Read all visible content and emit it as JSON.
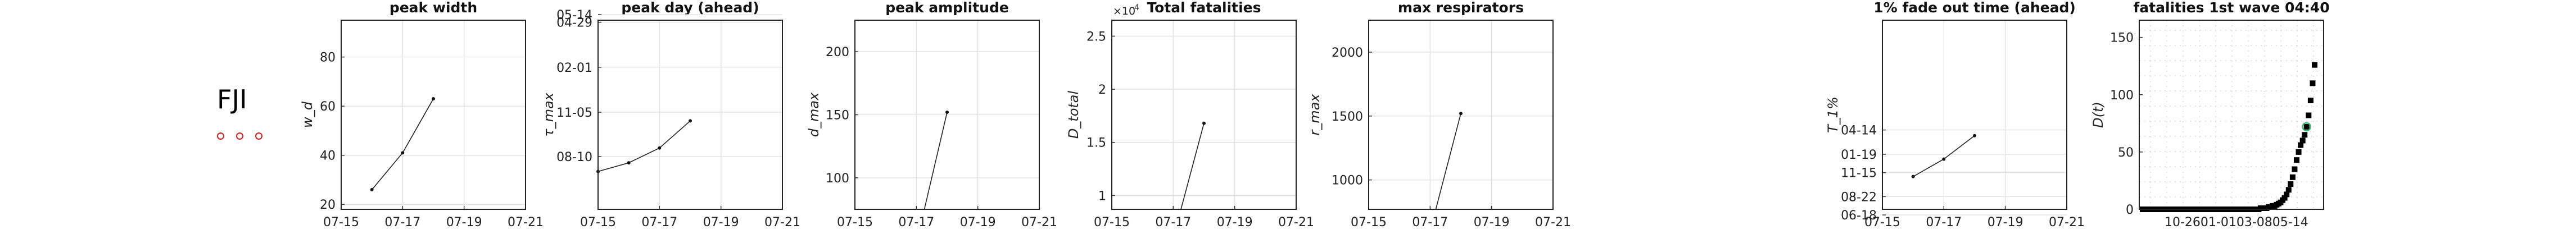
{
  "country": {
    "code": "FJI",
    "marker_color": "#d81b1b",
    "marker_count": 3
  },
  "chart_data": [
    {
      "type": "line",
      "title": "peak width",
      "ylabel": "w_d",
      "x": [
        "07-16",
        "07-17",
        "07-18"
      ],
      "y": [
        26,
        41,
        63
      ],
      "xticks": [
        "07-15",
        "07-17",
        "07-19",
        "07-21"
      ],
      "yticks": [
        "20",
        "40",
        "60",
        "80"
      ]
    },
    {
      "type": "line",
      "title": "peak day (ahead)",
      "ylabel": "τ_max",
      "x": [
        "07-15",
        "07-16",
        "07-17",
        "07-18"
      ],
      "y": [
        "07-12",
        "07-29",
        "08-27",
        "10-19"
      ],
      "xticks": [
        "07-15",
        "07-17",
        "07-19",
        "07-21"
      ],
      "yticks": [
        "05-14",
        "08-10",
        "11-05",
        "02-01",
        "04-29"
      ]
    },
    {
      "type": "line",
      "title": "peak amplitude",
      "ylabel": "d_max",
      "x": [
        "07-17",
        "07-18"
      ],
      "y": [
        48,
        152
      ],
      "xticks": [
        "07-15",
        "07-17",
        "07-19",
        "07-21"
      ],
      "yticks": [
        "100",
        "150",
        "200"
      ]
    },
    {
      "type": "line",
      "title": "Total fatalities",
      "ylabel": "D_total",
      "exponent_label": "×10",
      "exponent_power": "4",
      "x": [
        "07-17",
        "07-18"
      ],
      "y": [
        6000,
        16800
      ],
      "xticks": [
        "07-15",
        "07-17",
        "07-19",
        "07-21"
      ],
      "yticks": [
        "1",
        "1.5",
        "2",
        "2.5"
      ]
    },
    {
      "type": "line",
      "title": "max respirators",
      "ylabel": "r_max",
      "x": [
        "07-17",
        "07-18"
      ],
      "y": [
        600,
        1520
      ],
      "xticks": [
        "07-15",
        "07-17",
        "07-19",
        "07-21"
      ],
      "yticks": [
        "1000",
        "1500",
        "2000"
      ]
    },
    {
      "type": "line",
      "title": "1% fade out time (ahead)",
      "ylabel": "T_1%",
      "x": [
        "07-16",
        "07-17",
        "07-18"
      ],
      "y": [
        "11-01",
        "01-02",
        "03-25"
      ],
      "xticks": [
        "07-15",
        "07-17",
        "07-19",
        "07-21"
      ],
      "yticks": [
        "08-22",
        "01-19",
        "06-18",
        "11-15",
        "04-14"
      ]
    },
    {
      "type": "scatter",
      "title": "fatalities 1st wave 04:40",
      "ylabel": "D(t)",
      "x_tick_text": "10-2601-0103-0805-14",
      "yticks": [
        "0",
        "50",
        "100",
        "150"
      ],
      "y": [
        0,
        0,
        0,
        0,
        0,
        0,
        0,
        0,
        0,
        0,
        0,
        0,
        0,
        0,
        0,
        0,
        0,
        0,
        0,
        0,
        0,
        0,
        0,
        0,
        0,
        0,
        0,
        0,
        0,
        0,
        0,
        0,
        0,
        0,
        0,
        0,
        0,
        0,
        0,
        0,
        0,
        0,
        0,
        0,
        0,
        0,
        0,
        0,
        0,
        0,
        0,
        0,
        0,
        0,
        0,
        0,
        0,
        0,
        0,
        1,
        1,
        1,
        1,
        2,
        2,
        3,
        3,
        4,
        5,
        6,
        8,
        10,
        13,
        17,
        22,
        28,
        35,
        43,
        50,
        56,
        60,
        65,
        72,
        82,
        95,
        110,
        126
      ],
      "highlight_color": "#3cb371"
    }
  ]
}
